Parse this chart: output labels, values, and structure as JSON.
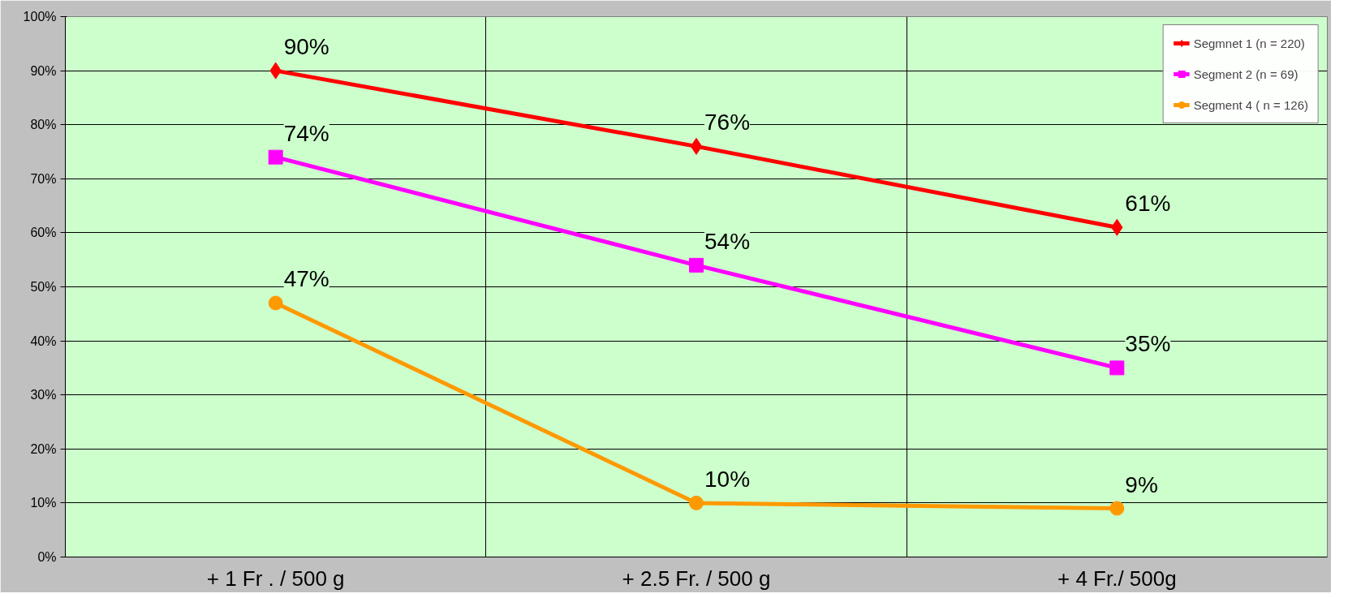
{
  "chart_data": {
    "type": "line",
    "categories": [
      "+ 1 Fr . / 500 g",
      "+ 2.5 Fr. / 500 g",
      "+ 4 Fr./ 500g"
    ],
    "series": [
      {
        "name": "Segmnet 1 (n = 220)",
        "color": "#ff0000",
        "marker": "diamond",
        "values": [
          90,
          76,
          61
        ],
        "value_labels": [
          "90%",
          "76%",
          "61%"
        ]
      },
      {
        "name": "Segment 2 (n = 69)",
        "color": "#ff00ff",
        "marker": "square",
        "values": [
          74,
          54,
          35
        ],
        "value_labels": [
          "74%",
          "54%",
          "35%"
        ]
      },
      {
        "name": "Segment 4 ( n = 126)",
        "color": "#ff9900",
        "marker": "circle",
        "values": [
          47,
          10,
          9
        ],
        "value_labels": [
          "47%",
          "10%",
          "9%"
        ]
      }
    ],
    "ylim": [
      0,
      100
    ],
    "yticks": [
      {
        "value": 0,
        "label": "0%"
      },
      {
        "value": 10,
        "label": "10%"
      },
      {
        "value": 20,
        "label": "20%"
      },
      {
        "value": 30,
        "label": "30%"
      },
      {
        "value": 40,
        "label": "40%"
      },
      {
        "value": 50,
        "label": "50%"
      },
      {
        "value": 60,
        "label": "60%"
      },
      {
        "value": 70,
        "label": "70%"
      },
      {
        "value": 80,
        "label": "80%"
      },
      {
        "value": 90,
        "label": "90%"
      },
      {
        "value": 100,
        "label": "100%"
      }
    ],
    "grid": true,
    "legend": "top right",
    "line_style": "solid"
  }
}
